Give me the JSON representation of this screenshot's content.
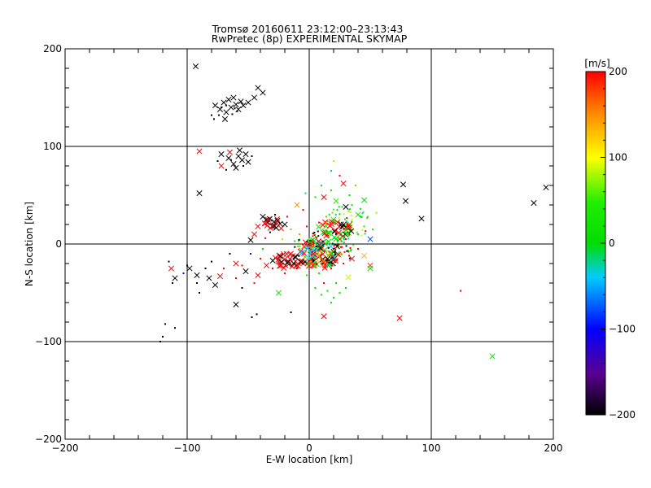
{
  "chart_data": {
    "type": "scatter",
    "title": "Tromsø 20160611 23:12:00–23:13:43",
    "subtitle": "RwPretec (8p) EXPERIMENTAL SKYMAP",
    "xlabel": "E-W location [km]",
    "ylabel": "N-S location [km]",
    "xlim": [
      -200,
      200
    ],
    "ylim": [
      -200,
      200
    ],
    "xticks": [
      -200,
      -100,
      0,
      100,
      200
    ],
    "yticks": [
      -200,
      -100,
      0,
      100,
      200
    ],
    "grid": true,
    "colorbar": {
      "label": "[m/s]",
      "range": [
        -200,
        200
      ],
      "ticks": [
        -200,
        -100,
        0,
        100,
        200
      ],
      "position": "right",
      "colormap": [
        "#000000",
        "#7a00a0",
        "#0000ff",
        "#00ccff",
        "#00dd00",
        "#ffff00",
        "#ff8800",
        "#ff0000"
      ]
    },
    "series": [
      {
        "marker": "x",
        "points": [
          {
            "x": -93,
            "y": 182,
            "v": -200
          },
          {
            "x": -77,
            "y": 142,
            "v": -200
          },
          {
            "x": -73,
            "y": 138,
            "v": -200
          },
          {
            "x": -70,
            "y": 145,
            "v": -200
          },
          {
            "x": -68,
            "y": 135,
            "v": -200
          },
          {
            "x": -66,
            "y": 148,
            "v": -200
          },
          {
            "x": -64,
            "y": 140,
            "v": -200
          },
          {
            "x": -62,
            "y": 150,
            "v": -200
          },
          {
            "x": -60,
            "y": 143,
            "v": -200
          },
          {
            "x": -58,
            "y": 138,
            "v": -200
          },
          {
            "x": -56,
            "y": 146,
            "v": -200
          },
          {
            "x": -54,
            "y": 142,
            "v": -200
          },
          {
            "x": -50,
            "y": 145,
            "v": -200
          },
          {
            "x": -45,
            "y": 150,
            "v": -200
          },
          {
            "x": -42,
            "y": 160,
            "v": -200
          },
          {
            "x": -38,
            "y": 155,
            "v": -200
          },
          {
            "x": -69,
            "y": 128,
            "v": -200
          },
          {
            "x": -72,
            "y": 92,
            "v": -200
          },
          {
            "x": -66,
            "y": 88,
            "v": -200
          },
          {
            "x": -62,
            "y": 82,
            "v": -200
          },
          {
            "x": -58,
            "y": 90,
            "v": -200
          },
          {
            "x": -55,
            "y": 86,
            "v": -200
          },
          {
            "x": -52,
            "y": 92,
            "v": -200
          },
          {
            "x": -50,
            "y": 84,
            "v": -200
          },
          {
            "x": -60,
            "y": 78,
            "v": -200
          },
          {
            "x": -57,
            "y": 96,
            "v": -200
          },
          {
            "x": -65,
            "y": 94,
            "v": 200
          },
          {
            "x": -72,
            "y": 80,
            "v": 200
          },
          {
            "x": -90,
            "y": 95,
            "v": 200
          },
          {
            "x": -90,
            "y": 52,
            "v": -200
          },
          {
            "x": 77,
            "y": 61,
            "v": -200
          },
          {
            "x": 79,
            "y": 44,
            "v": -200
          },
          {
            "x": 92,
            "y": 26,
            "v": -200
          },
          {
            "x": 184,
            "y": 42,
            "v": -200
          },
          {
            "x": 194,
            "y": 58,
            "v": -200
          },
          {
            "x": -38,
            "y": 28,
            "v": -200
          },
          {
            "x": -34,
            "y": 22,
            "v": -200
          },
          {
            "x": -30,
            "y": 18,
            "v": -200
          },
          {
            "x": -26,
            "y": 24,
            "v": -200
          },
          {
            "x": -23,
            "y": 16,
            "v": 200
          },
          {
            "x": -20,
            "y": 20,
            "v": -200
          },
          {
            "x": -42,
            "y": 18,
            "v": 200
          },
          {
            "x": -45,
            "y": 10,
            "v": 200
          },
          {
            "x": -48,
            "y": 4,
            "v": -200
          },
          {
            "x": -10,
            "y": 40,
            "v": 150
          },
          {
            "x": 12,
            "y": 48,
            "v": 200
          },
          {
            "x": 28,
            "y": 62,
            "v": 200
          },
          {
            "x": 30,
            "y": 38,
            "v": -200
          },
          {
            "x": 22,
            "y": 44,
            "v": 50
          },
          {
            "x": 45,
            "y": 45,
            "v": 0
          },
          {
            "x": 40,
            "y": 30,
            "v": 20
          },
          {
            "x": 50,
            "y": 5,
            "v": -80
          },
          {
            "x": 10,
            "y": -5,
            "v": 200
          },
          {
            "x": 5,
            "y": -12,
            "v": -200
          },
          {
            "x": 15,
            "y": -18,
            "v": 200
          },
          {
            "x": -5,
            "y": -20,
            "v": 200
          },
          {
            "x": 20,
            "y": -8,
            "v": -200
          },
          {
            "x": 25,
            "y": 5,
            "v": 200
          },
          {
            "x": 0,
            "y": 0,
            "v": -200
          },
          {
            "x": -15,
            "y": -10,
            "v": 200
          },
          {
            "x": -25,
            "y": -18,
            "v": 200
          },
          {
            "x": -35,
            "y": -22,
            "v": 200
          },
          {
            "x": 35,
            "y": -15,
            "v": 200
          },
          {
            "x": 45,
            "y": -12,
            "v": 130
          },
          {
            "x": 50,
            "y": -22,
            "v": 180
          },
          {
            "x": -110,
            "y": -35,
            "v": -200
          },
          {
            "x": -113,
            "y": -25,
            "v": 200
          },
          {
            "x": -98,
            "y": -25,
            "v": -200
          },
          {
            "x": -92,
            "y": -32,
            "v": -200
          },
          {
            "x": -82,
            "y": -35,
            "v": -200
          },
          {
            "x": -77,
            "y": -42,
            "v": -200
          },
          {
            "x": -73,
            "y": -33,
            "v": 200
          },
          {
            "x": -60,
            "y": -20,
            "v": 200
          },
          {
            "x": -52,
            "y": -28,
            "v": -200
          },
          {
            "x": -60,
            "y": -62,
            "v": -200
          },
          {
            "x": -42,
            "y": -32,
            "v": 200
          },
          {
            "x": -25,
            "y": -50,
            "v": 20
          },
          {
            "x": 12,
            "y": -74,
            "v": 200
          },
          {
            "x": 74,
            "y": -76,
            "v": 200
          },
          {
            "x": 50,
            "y": -25,
            "v": 0
          },
          {
            "x": 32,
            "y": -34,
            "v": 90
          },
          {
            "x": 150,
            "y": -115,
            "v": 10
          }
        ]
      },
      {
        "marker": "dot",
        "points": [
          {
            "x": -80,
            "y": 132,
            "v": -200
          },
          {
            "x": -78,
            "y": 128,
            "v": -200
          },
          {
            "x": -74,
            "y": 132,
            "v": -200
          },
          {
            "x": -72,
            "y": 140,
            "v": -200
          },
          {
            "x": -68,
            "y": 142,
            "v": -200
          },
          {
            "x": -63,
            "y": 133,
            "v": -200
          },
          {
            "x": -61,
            "y": 139,
            "v": -200
          },
          {
            "x": -59,
            "y": 136,
            "v": -200
          },
          {
            "x": -75,
            "y": 85,
            "v": -200
          },
          {
            "x": -64,
            "y": 86,
            "v": -200
          },
          {
            "x": -54,
            "y": 80,
            "v": -200
          },
          {
            "x": -47,
            "y": 90,
            "v": -200
          },
          {
            "x": -68,
            "y": 76,
            "v": -200
          },
          {
            "x": 20,
            "y": 85,
            "v": 120
          },
          {
            "x": 10,
            "y": 60,
            "v": 40
          },
          {
            "x": 5,
            "y": 48,
            "v": 10
          },
          {
            "x": -3,
            "y": 52,
            "v": -20
          },
          {
            "x": 18,
            "y": 55,
            "v": 30
          },
          {
            "x": 33,
            "y": 50,
            "v": 0
          },
          {
            "x": 42,
            "y": 36,
            "v": 25
          },
          {
            "x": 48,
            "y": 28,
            "v": 60
          },
          {
            "x": 52,
            "y": 15,
            "v": 40
          },
          {
            "x": 35,
            "y": 25,
            "v": 90
          },
          {
            "x": 28,
            "y": 20,
            "v": 20
          },
          {
            "x": 14,
            "y": 28,
            "v": 50
          },
          {
            "x": 8,
            "y": 22,
            "v": 200
          },
          {
            "x": -2,
            "y": 18,
            "v": 200
          },
          {
            "x": -8,
            "y": 10,
            "v": 150
          },
          {
            "x": -12,
            "y": 3,
            "v": 30
          },
          {
            "x": 3,
            "y": 8,
            "v": 200
          },
          {
            "x": 12,
            "y": 12,
            "v": 200
          },
          {
            "x": 22,
            "y": 10,
            "v": -200
          },
          {
            "x": 30,
            "y": 5,
            "v": 200
          },
          {
            "x": 40,
            "y": 10,
            "v": 10
          },
          {
            "x": 45,
            "y": 18,
            "v": 40
          },
          {
            "x": 18,
            "y": -25,
            "v": 200
          },
          {
            "x": 8,
            "y": -30,
            "v": 10
          },
          {
            "x": -2,
            "y": -32,
            "v": 30
          },
          {
            "x": 22,
            "y": -40,
            "v": 0
          },
          {
            "x": 15,
            "y": -48,
            "v": 10
          },
          {
            "x": 20,
            "y": -55,
            "v": 20
          },
          {
            "x": 25,
            "y": -50,
            "v": 5
          },
          {
            "x": 30,
            "y": -45,
            "v": 15
          },
          {
            "x": 10,
            "y": -52,
            "v": 25
          },
          {
            "x": 5,
            "y": -45,
            "v": 0
          },
          {
            "x": 18,
            "y": -60,
            "v": 10
          },
          {
            "x": 12,
            "y": -40,
            "v": 200
          },
          {
            "x": -10,
            "y": -25,
            "v": 200
          },
          {
            "x": -20,
            "y": -30,
            "v": 200
          },
          {
            "x": -30,
            "y": -25,
            "v": 200
          },
          {
            "x": -40,
            "y": -15,
            "v": 200
          },
          {
            "x": -48,
            "y": -10,
            "v": -120
          },
          {
            "x": -55,
            "y": -22,
            "v": 200
          },
          {
            "x": -5,
            "y": 35,
            "v": 200
          },
          {
            "x": -15,
            "y": 15,
            "v": 150
          },
          {
            "x": -18,
            "y": 28,
            "v": 200
          },
          {
            "x": -28,
            "y": 30,
            "v": -200
          },
          {
            "x": -32,
            "y": 12,
            "v": -200
          },
          {
            "x": -36,
            "y": 6,
            "v": 200
          },
          {
            "x": 25,
            "y": 70,
            "v": 200
          },
          {
            "x": 38,
            "y": 60,
            "v": 60
          },
          {
            "x": -45,
            "y": -40,
            "v": 200
          },
          {
            "x": -55,
            "y": -45,
            "v": -200
          },
          {
            "x": -70,
            "y": -25,
            "v": 200
          },
          {
            "x": -80,
            "y": -18,
            "v": -200
          },
          {
            "x": -85,
            "y": -25,
            "v": -200
          },
          {
            "x": -92,
            "y": -40,
            "v": -200
          },
          {
            "x": -100,
            "y": -22,
            "v": -200
          },
          {
            "x": -103,
            "y": -30,
            "v": -120
          },
          {
            "x": -112,
            "y": -40,
            "v": -200
          },
          {
            "x": -90,
            "y": -50,
            "v": -200
          },
          {
            "x": -115,
            "y": -18,
            "v": -200
          },
          {
            "x": -118,
            "y": -82,
            "v": -200
          },
          {
            "x": -110,
            "y": -86,
            "v": -200
          },
          {
            "x": -122,
            "y": -100,
            "v": -200
          },
          {
            "x": -120,
            "y": -95,
            "v": -200
          },
          {
            "x": -47,
            "y": -75,
            "v": -200
          },
          {
            "x": -43,
            "y": -72,
            "v": -200
          },
          {
            "x": -15,
            "y": -70,
            "v": -200
          },
          {
            "x": 124,
            "y": -48,
            "v": 200
          },
          {
            "x": 18,
            "y": 75,
            "v": -20
          },
          {
            "x": -38,
            "y": -5,
            "v": 10
          },
          {
            "x": -22,
            "y": 5,
            "v": 80
          },
          {
            "x": 55,
            "y": 32,
            "v": 70
          },
          {
            "x": 35,
            "y": 40,
            "v": 30
          },
          {
            "x": 40,
            "y": -5,
            "v": 200
          },
          {
            "x": 28,
            "y": -20,
            "v": 200
          },
          {
            "x": -60,
            "y": -35,
            "v": 200
          },
          {
            "x": -65,
            "y": -10,
            "v": -200
          }
        ]
      }
    ],
    "clusters": [
      {
        "marker": "x",
        "cx": 8,
        "cy": -10,
        "rx": 18,
        "ry": 15,
        "n": 90,
        "palette": [
          -200,
          200,
          200,
          150,
          0,
          -40
        ]
      },
      {
        "marker": "dot",
        "cx": 12,
        "cy": -5,
        "rx": 25,
        "ry": 20,
        "n": 90,
        "palette": [
          -200,
          200,
          200,
          60,
          10,
          -200
        ]
      },
      {
        "marker": "x",
        "cx": -18,
        "cy": -18,
        "rx": 12,
        "ry": 8,
        "n": 30,
        "palette": [
          200,
          200,
          200,
          -200
        ]
      },
      {
        "marker": "dot",
        "cx": 30,
        "cy": 20,
        "rx": 20,
        "ry": 20,
        "n": 60,
        "palette": [
          20,
          60,
          0,
          90,
          200,
          -20
        ]
      },
      {
        "marker": "x",
        "cx": 20,
        "cy": 15,
        "rx": 15,
        "ry": 10,
        "n": 35,
        "palette": [
          200,
          200,
          -200,
          40,
          0
        ]
      },
      {
        "marker": "x",
        "cx": -30,
        "cy": 22,
        "rx": 8,
        "ry": 6,
        "n": 14,
        "palette": [
          -200,
          200
        ]
      }
    ]
  }
}
